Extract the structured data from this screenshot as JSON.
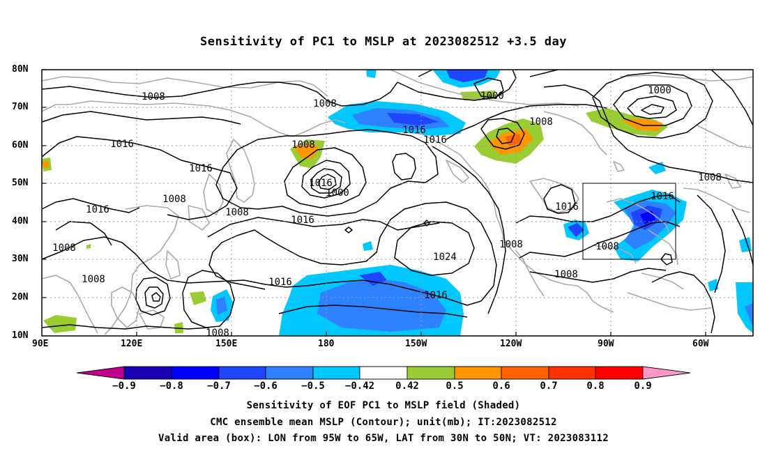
{
  "title": "Sensitivity of PC1 to MSLP at 2023082512 +3.5 day",
  "lat_labels": [
    "80N",
    "70N",
    "60N",
    "50N",
    "40N",
    "30N",
    "20N",
    "10N"
  ],
  "lon_labels": [
    "90E",
    "120E",
    "150E",
    "180",
    "150W",
    "120W",
    "90W",
    "60W"
  ],
  "colorbar": {
    "colors": [
      "#c0008c",
      "#1c00b4",
      "#0000ff",
      "#1e46ff",
      "#2f82ff",
      "#00c8ff",
      "#ffffff",
      "#9acd32",
      "#ff9600",
      "#ff6400",
      "#ff3200",
      "#ff0000",
      "#ff96c8"
    ],
    "labels": [
      "−0.9",
      "−0.8",
      "−0.7",
      "−0.6",
      "−0.5",
      "−0.42",
      "0.42",
      "0.5",
      "0.6",
      "0.7",
      "0.8",
      "0.9"
    ]
  },
  "contour_labels": [
    "1008",
    "1008",
    "1016",
    "1016",
    "1016",
    "1016",
    "1000",
    "1008",
    "1016",
    "1024",
    "1016",
    "1008",
    "1016",
    "1008",
    "1008",
    "1016",
    "1016",
    "1000",
    "1008",
    "1000",
    "1008",
    "1016",
    "1008",
    "1008",
    "1016",
    "1008",
    "1008",
    "1008"
  ],
  "captions": [
    "Sensitivity of EOF PC1 to MSLP field (Shaded)",
    "CMC ensemble mean MSLP (Contour); unit(mb); IT:2023082512",
    "Valid area (box): LON from 95W to 65W, LAT from 30N to 50N; VT: 2023083112"
  ],
  "valid_box": {
    "lon": [
      -95,
      -65
    ],
    "lat": [
      30,
      50
    ]
  },
  "map_extent": {
    "lon": [
      90,
      315
    ],
    "lat": [
      10,
      80
    ]
  }
}
